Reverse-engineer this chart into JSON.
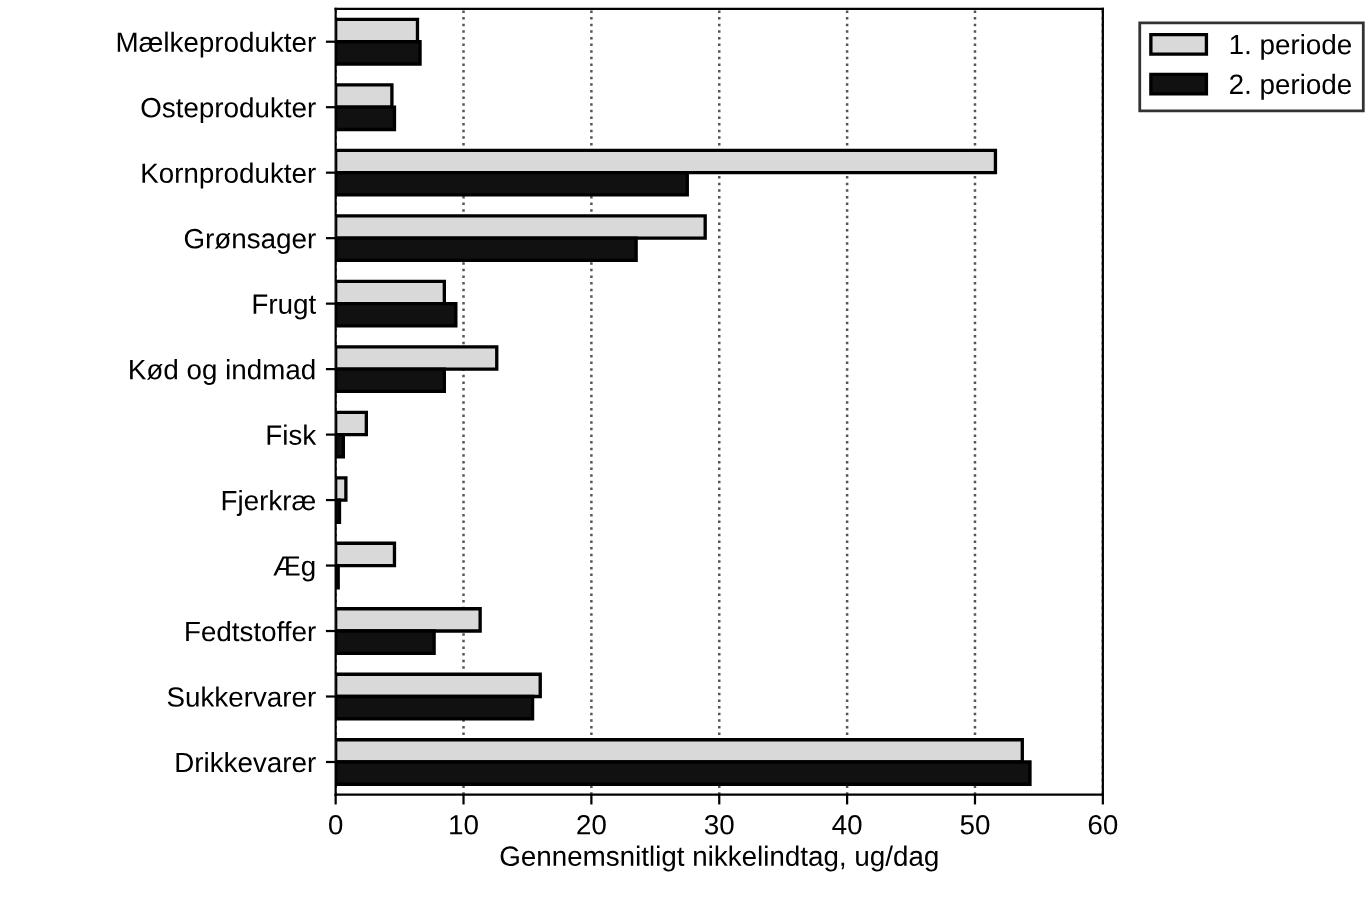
{
  "chart_data": {
    "type": "bar",
    "orientation": "horizontal",
    "xlabel": "Gennemsnitligt nikkelindtag, ug/dag",
    "categories": [
      "Mælkeprodukter",
      "Osteprodukter",
      "Kornprodukter",
      "Grønsager",
      "Frugt",
      "Kød og indmad",
      "Fisk",
      "Fjerkræ",
      "Æg",
      "Fedtstoffer",
      "Sukkervarer",
      "Drikkevarer"
    ],
    "series": [
      {
        "name": "1. periode",
        "color": "#d9d9d9",
        "values": [
          6.4,
          4.4,
          51.6,
          28.9,
          8.5,
          12.6,
          2.4,
          0.8,
          4.6,
          11.3,
          16.0,
          53.7
        ]
      },
      {
        "name": "2. periode",
        "color": "#111111",
        "values": [
          6.6,
          4.6,
          27.5,
          23.5,
          9.4,
          8.5,
          0.6,
          0.3,
          0.2,
          7.7,
          15.4,
          54.3
        ]
      }
    ],
    "xlim": [
      0,
      60
    ],
    "xticks": [
      0,
      10,
      20,
      30,
      40,
      50,
      60
    ],
    "grid": "x",
    "legend": "top right"
  }
}
